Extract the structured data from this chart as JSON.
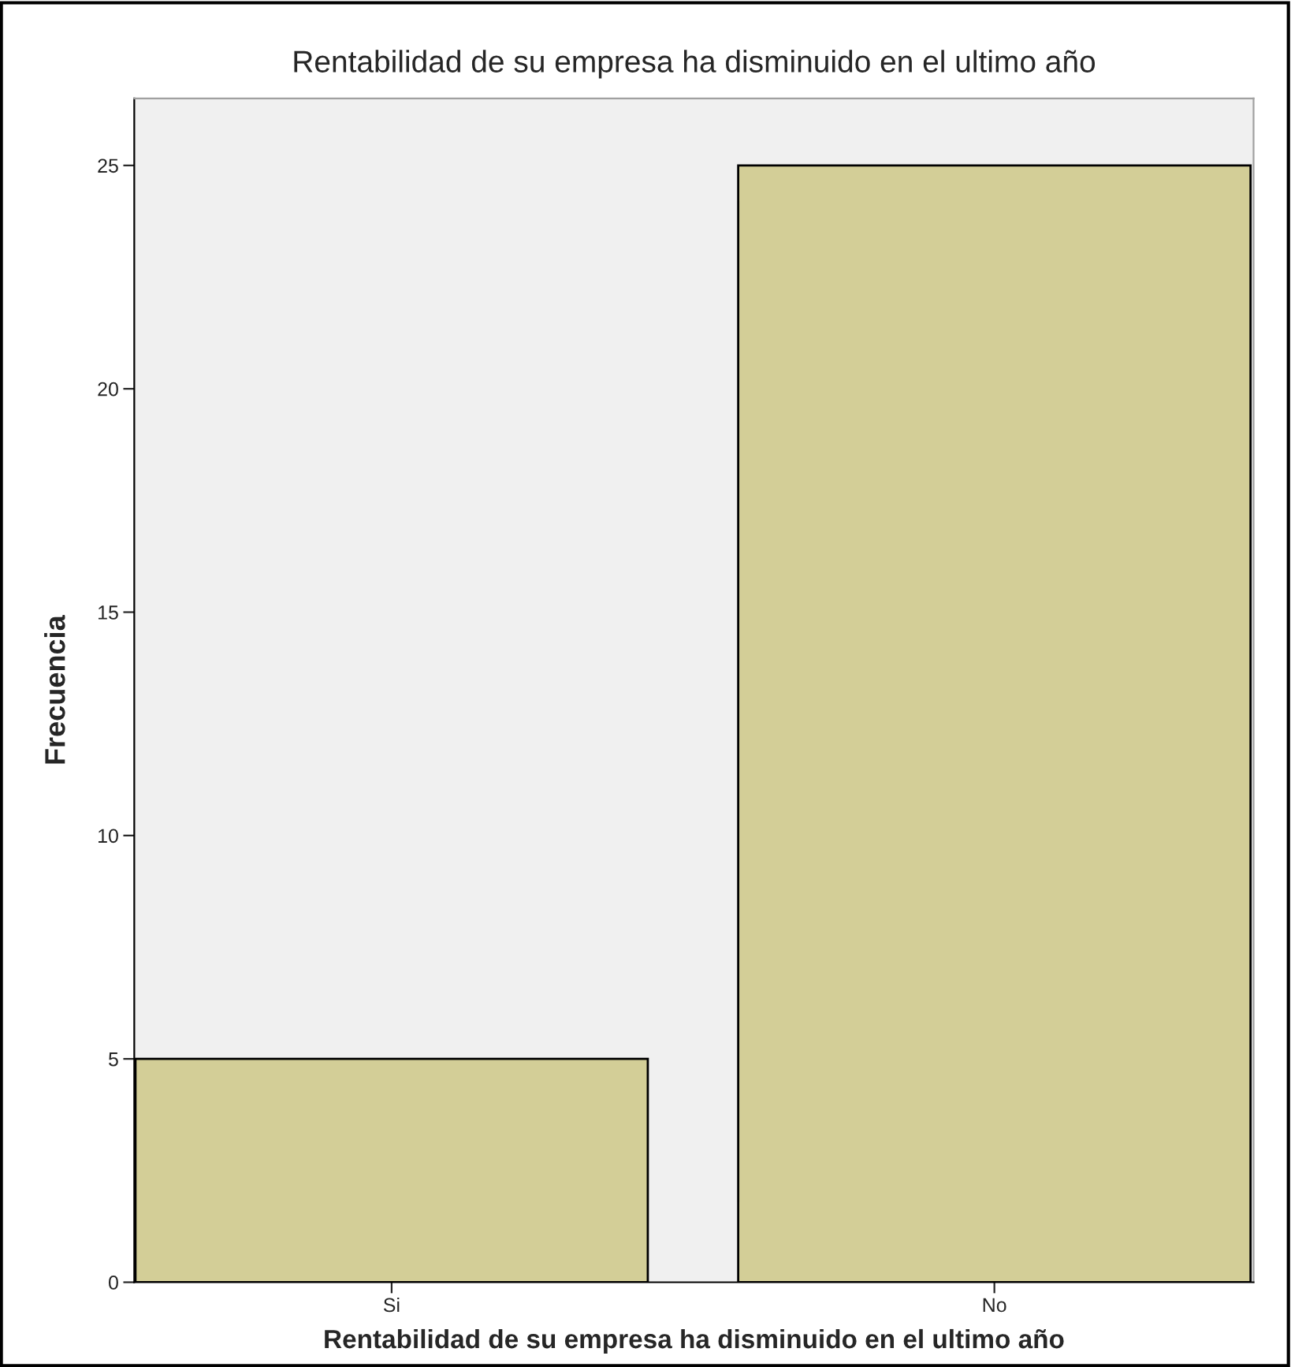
{
  "chart_data": {
    "type": "bar",
    "title": "Rentabilidad de su empresa ha disminuido en el ultimo año",
    "xlabel": "Rentabilidad de su empresa ha disminuido en el ultimo año",
    "ylabel": "Frecuencia",
    "categories": [
      "Si",
      "No"
    ],
    "values": [
      5,
      25
    ],
    "color": "#d3ce97",
    "ylim": [
      0,
      26.5
    ],
    "yticks": [
      0,
      5,
      10,
      15,
      20,
      25
    ],
    "grid": false
  }
}
